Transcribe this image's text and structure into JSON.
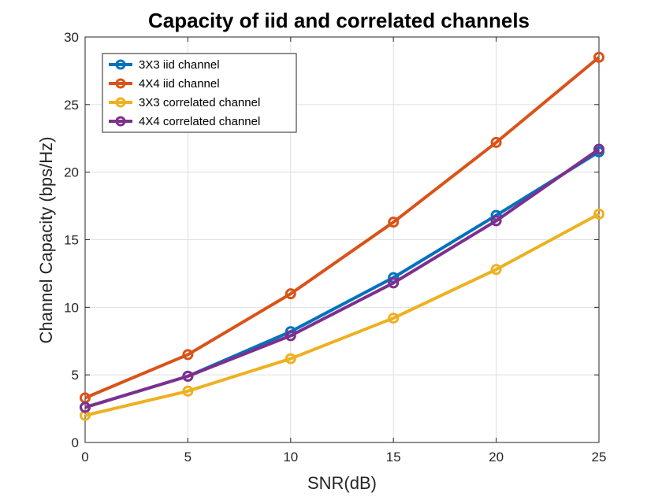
{
  "chart_data": {
    "type": "line",
    "title": "Capacity of iid and correlated channels",
    "xlabel": "SNR(dB)",
    "ylabel": "Channel Capacity (bps/Hz)",
    "xlim": [
      0,
      25
    ],
    "ylim": [
      0,
      30
    ],
    "x_ticks": [
      0,
      5,
      10,
      15,
      20,
      25
    ],
    "y_ticks": [
      0,
      5,
      10,
      15,
      20,
      25,
      30
    ],
    "grid": true,
    "legend_position": "top-left",
    "marker": "circle",
    "x": [
      0,
      5,
      10,
      15,
      20,
      25
    ],
    "series": [
      {
        "name": "3X3 iid channel",
        "color": "#0072BD",
        "values": [
          2.6,
          4.9,
          8.2,
          12.2,
          16.8,
          21.5
        ]
      },
      {
        "name": "4X4 iid channel",
        "color": "#D95319",
        "values": [
          3.3,
          6.5,
          11.0,
          16.3,
          22.2,
          28.5
        ]
      },
      {
        "name": "3X3 correlated channel",
        "color": "#EDB120",
        "values": [
          2.0,
          3.8,
          6.2,
          9.2,
          12.8,
          16.9
        ]
      },
      {
        "name": "4X4 correlated channel",
        "color": "#7E2F8E",
        "values": [
          2.6,
          4.9,
          7.9,
          11.8,
          16.4,
          21.7
        ]
      }
    ]
  }
}
